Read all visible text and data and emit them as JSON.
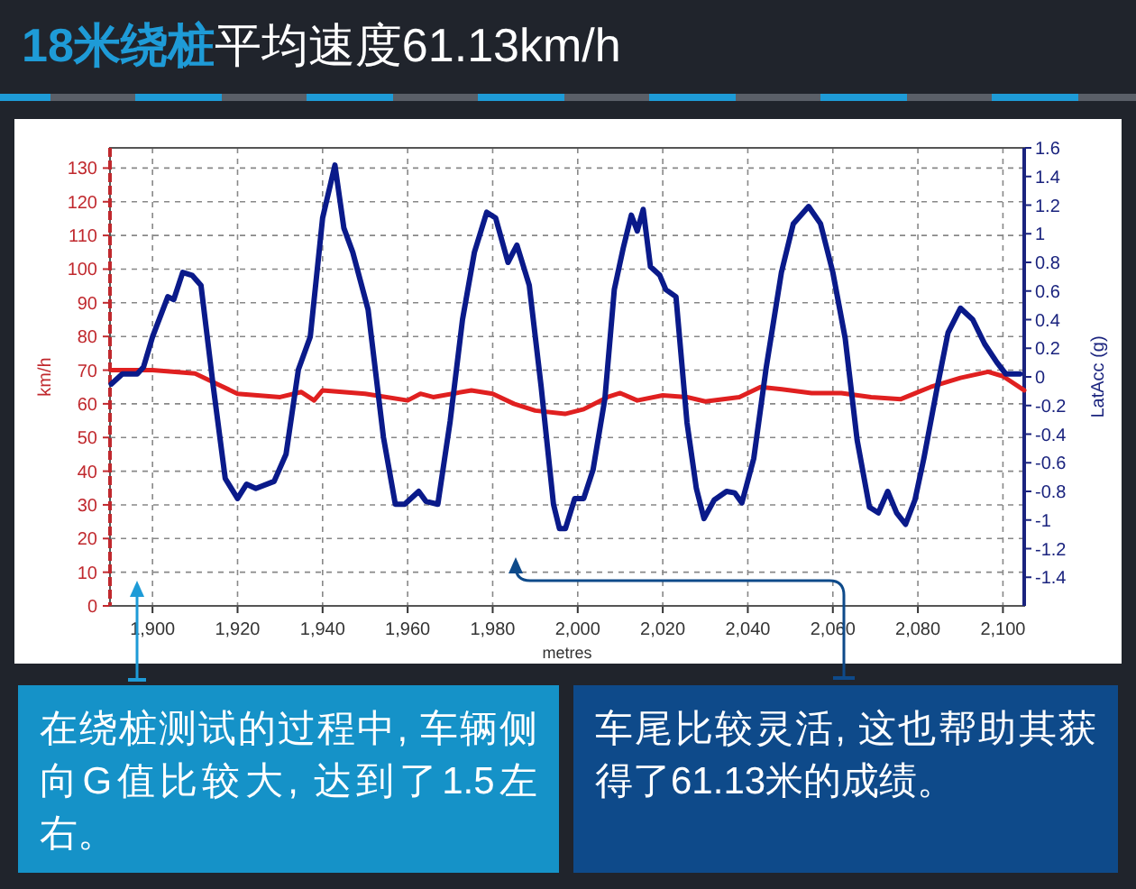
{
  "chart_data": {
    "type": "line",
    "title": "18米绕桩",
    "subtitle": "平均速度61.13km/h",
    "xlabel": "metres",
    "ylabel": "km/h",
    "y2label": "LatAcc (g)",
    "xlim": [
      1890,
      2105
    ],
    "xticks": [
      {
        "value": 1900,
        "label": "1,900"
      },
      {
        "value": 1920,
        "label": "1,920"
      },
      {
        "value": 1940,
        "label": "1,940"
      },
      {
        "value": 1960,
        "label": "1,960"
      },
      {
        "value": 1980,
        "label": "1,980"
      },
      {
        "value": 2000,
        "label": "2,000"
      },
      {
        "value": 2020,
        "label": "2,020"
      },
      {
        "value": 2040,
        "label": "2,040"
      },
      {
        "value": 2060,
        "label": "2,060"
      },
      {
        "value": 2080,
        "label": "2,080"
      },
      {
        "value": 2100,
        "label": "2,100"
      }
    ],
    "ylim": [
      0,
      136
    ],
    "yticks": [
      0,
      10,
      20,
      30,
      40,
      50,
      60,
      70,
      80,
      90,
      100,
      110,
      120,
      130
    ],
    "y2lim": [
      -1.6,
      1.6
    ],
    "y2ticks": [
      -1.4,
      -1.2,
      -1,
      -0.8,
      -0.6,
      -0.4,
      -0.2,
      0,
      0.2,
      0.4,
      0.6,
      0.8,
      1,
      1.2,
      1.4,
      1.6
    ],
    "grid": true,
    "line_style": "solid",
    "series": [
      {
        "color": "#e02020",
        "axis": "y",
        "x": [
          1890.3,
          1900,
          1910,
          1915,
          1920,
          1930,
          1935,
          1938,
          1940,
          1950,
          1960,
          1963,
          1966,
          1975,
          1980,
          1985,
          1990,
          1997,
          2001.4,
          2007,
          2010,
          2014,
          2020,
          2025.7,
          2030,
          2038,
          2043,
          2048,
          2055,
          2062,
          2069,
          2076,
          2083,
          2090,
          2096.5,
          2100,
          2105
        ],
        "values": [
          70,
          70,
          69,
          66,
          63,
          62,
          63.5,
          61,
          64,
          63,
          61,
          63,
          62,
          64,
          63,
          60,
          58,
          57,
          58.4,
          62,
          63.2,
          61,
          62.5,
          62,
          60.7,
          62,
          65,
          64.3,
          63.2,
          63.2,
          62,
          61.4,
          65,
          67.7,
          69.5,
          68.2,
          64
        ]
      },
      {
        "color": "#0a1a8a",
        "axis": "y2",
        "x": [
          1890.3,
          1892.9,
          1896.4,
          1897.9,
          1900,
          1903.6,
          1905,
          1907.1,
          1909.3,
          1911.4,
          1914.3,
          1917.1,
          1920,
          1922.1,
          1924.3,
          1928.6,
          1931.4,
          1934.3,
          1937.1,
          1940,
          1942.9,
          1945,
          1947.1,
          1950.7,
          1954.3,
          1957.1,
          1959.3,
          1962.6,
          1964.3,
          1967.1,
          1970,
          1972.9,
          1975.7,
          1978.6,
          1980.7,
          1983.6,
          1985.7,
          1988.6,
          1991.4,
          1994.3,
          1995.7,
          1997.1,
          1999.3,
          2001.4,
          2003.6,
          2006.4,
          2008.6,
          2010.7,
          2012.6,
          2014,
          2015.4,
          2017.1,
          2019.3,
          2020.7,
          2023.1,
          2025.7,
          2027.9,
          2029.7,
          2032.1,
          2035,
          2036.9,
          2038.6,
          2041.4,
          2044.3,
          2047.9,
          2050.7,
          2054.3,
          2057.1,
          2060,
          2062.9,
          2065.7,
          2068.6,
          2070.7,
          2072.9,
          2075,
          2077.1,
          2079.3,
          2081.4,
          2084.3,
          2087.1,
          2090,
          2092.9,
          2095.7,
          2098.6,
          2100.7,
          2104
        ],
        "values": [
          -0.05,
          0.02,
          0.02,
          0.07,
          0.28,
          0.56,
          0.54,
          0.73,
          0.71,
          0.64,
          -0.07,
          -0.71,
          -0.85,
          -0.75,
          -0.78,
          -0.73,
          -0.54,
          0.05,
          0.28,
          1.11,
          1.48,
          1.04,
          0.87,
          0.47,
          -0.42,
          -0.89,
          -0.89,
          -0.8,
          -0.87,
          -0.89,
          -0.31,
          0.4,
          0.87,
          1.15,
          1.11,
          0.8,
          0.92,
          0.64,
          -0.07,
          -0.89,
          -1.06,
          -1.06,
          -0.85,
          -0.85,
          -0.65,
          -0.15,
          0.61,
          0.9,
          1.13,
          1.02,
          1.17,
          0.77,
          0.71,
          0.61,
          0.56,
          -0.32,
          -0.78,
          -0.99,
          -0.86,
          -0.8,
          -0.81,
          -0.88,
          -0.57,
          0.06,
          0.73,
          1.07,
          1.19,
          1.07,
          0.73,
          0.27,
          -0.44,
          -0.91,
          -0.95,
          -0.8,
          -0.95,
          -1.03,
          -0.86,
          -0.57,
          -0.11,
          0.31,
          0.48,
          0.4,
          0.23,
          0.1,
          0.02,
          0.02
        ]
      }
    ],
    "annotations": [
      "在绕桩测试的过程中, 车辆侧向G值比较大, 达到了1.5左右。",
      "车尾比较灵活, 这也帮助其获得了61.13米的成绩。"
    ]
  }
}
